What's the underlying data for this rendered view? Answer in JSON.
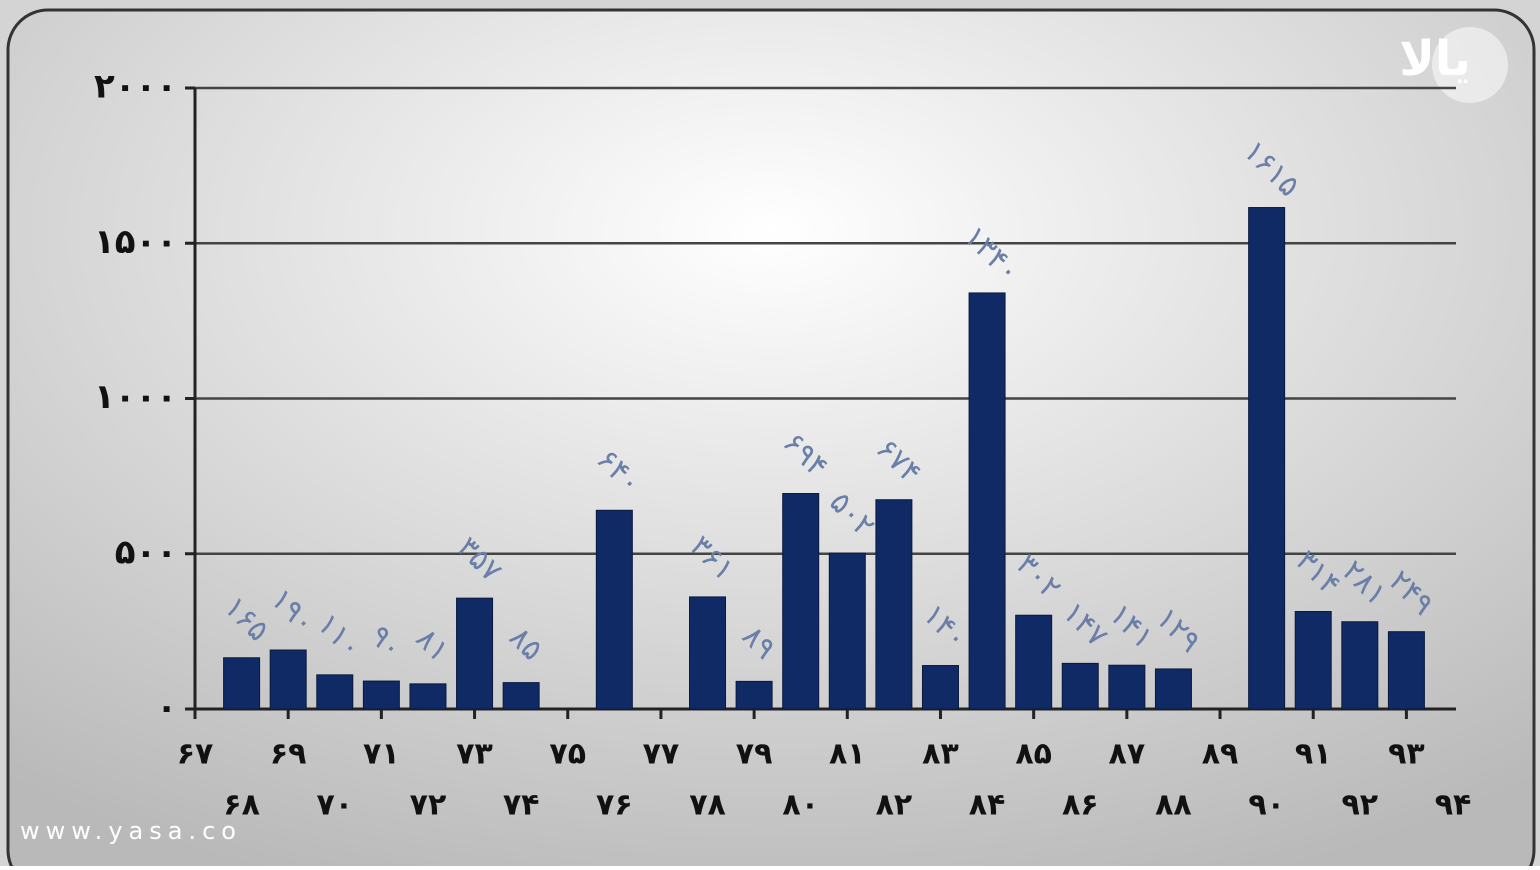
{
  "chart_data": {
    "type": "bar",
    "x": [
      68,
      69,
      70,
      71,
      72,
      73,
      74,
      75,
      76,
      77,
      78,
      79,
      80,
      81,
      82,
      83,
      84,
      85,
      86,
      87,
      88,
      89,
      90,
      91,
      92,
      93
    ],
    "values": [
      165,
      190,
      110,
      90,
      81,
      357,
      85,
      null,
      640,
      null,
      361,
      89,
      694,
      502,
      674,
      140,
      1340,
      302,
      147,
      141,
      129,
      null,
      1615,
      314,
      281,
      249
    ],
    "value_labels": [
      "۱۶۵",
      "۱۹۰",
      "۱۱۰",
      "۹۰",
      "۸۱",
      "۳۵۷",
      "۸۵",
      null,
      "۶۴۰",
      null,
      "۳۶۱",
      "۸۹",
      "۶۹۴",
      "۵۰۲",
      "۶۷۴",
      "۱۴۰",
      "۱۳۴۰",
      "۳۰۲",
      "۱۴۷",
      "۱۴۱",
      "۱۲۹",
      null,
      "۱۶۱۵",
      "۳۱۴",
      "۲۸۱",
      "۲۴۹"
    ],
    "color": "#102a66",
    "xlim": [
      67,
      94
    ],
    "xticks": [
      {
        "value": 67,
        "label": "۶۷"
      },
      {
        "value": 68,
        "label": "۶۸"
      },
      {
        "value": 69,
        "label": "۶۹"
      },
      {
        "value": 70,
        "label": "۷۰"
      },
      {
        "value": 71,
        "label": "۷۱"
      },
      {
        "value": 72,
        "label": "۷۲"
      },
      {
        "value": 73,
        "label": "۷۳"
      },
      {
        "value": 74,
        "label": "۷۴"
      },
      {
        "value": 75,
        "label": "۷۵"
      },
      {
        "value": 76,
        "label": "۷۶"
      },
      {
        "value": 77,
        "label": "۷۷"
      },
      {
        "value": 78,
        "label": "۷۸"
      },
      {
        "value": 79,
        "label": "۷۹"
      },
      {
        "value": 80,
        "label": "۸۰"
      },
      {
        "value": 81,
        "label": "۸۱"
      },
      {
        "value": 82,
        "label": "۸۲"
      },
      {
        "value": 83,
        "label": "۸۳"
      },
      {
        "value": 84,
        "label": "۸۴"
      },
      {
        "value": 85,
        "label": "۸۵"
      },
      {
        "value": 86,
        "label": "۸۶"
      },
      {
        "value": 87,
        "label": "۸۷"
      },
      {
        "value": 88,
        "label": "۸۸"
      },
      {
        "value": 89,
        "label": "۸۹"
      },
      {
        "value": 90,
        "label": "۹۰"
      },
      {
        "value": 91,
        "label": "۹۱"
      },
      {
        "value": 92,
        "label": "۹۲"
      },
      {
        "value": 93,
        "label": "۹۳"
      },
      {
        "value": 94,
        "label": "۹۴"
      }
    ],
    "ylim": [
      0,
      2000
    ],
    "yticks": [
      {
        "value": 0,
        "label": "۰"
      },
      {
        "value": 500,
        "label": "۵۰۰"
      },
      {
        "value": 1000,
        "label": "۱۰۰۰"
      },
      {
        "value": 1500,
        "label": "۱۵۰۰"
      },
      {
        "value": 2000,
        "label": "۲۰۰۰"
      }
    ],
    "grid": true,
    "logo": "یالا",
    "watermark": "www.yasa.co"
  }
}
